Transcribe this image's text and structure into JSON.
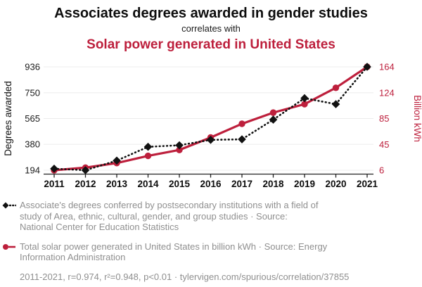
{
  "chart_data": {
    "type": "line",
    "title": "Associates degrees awarded in gender studies",
    "connector": "correlates with",
    "subtitle": "Solar power generated in United States",
    "x": [
      2011,
      2012,
      2013,
      2014,
      2015,
      2016,
      2017,
      2018,
      2019,
      2020,
      2021
    ],
    "series": [
      {
        "name": "Associate's degrees conferred in Area, ethnic, cultural, gender, and group studies",
        "axis": "left",
        "color": "#111111",
        "style": "dotted",
        "marker": "diamond",
        "values": [
          205,
          194,
          263,
          362,
          373,
          412,
          416,
          557,
          711,
          668,
          936
        ]
      },
      {
        "name": "Total solar power generated in United States",
        "axis": "right",
        "color": "#bd1f3c",
        "style": "solid",
        "marker": "circle",
        "values": [
          6,
          10,
          17,
          28,
          37,
          56,
          77,
          94,
          107,
          132,
          164
        ]
      }
    ],
    "left_axis": {
      "label": "Degrees awarded",
      "ticks": [
        936,
        750,
        565,
        380,
        194
      ],
      "min": 194,
      "max": 936
    },
    "right_axis": {
      "label": "Billion kWh",
      "ticks": [
        164,
        124,
        85,
        45,
        6
      ],
      "min": 6,
      "max": 164
    },
    "grid": true,
    "legend_position": "bottom",
    "legend": {
      "series1": {
        "marker": "black-diamond-dotted-line",
        "text": "Associate's degrees conferred by postsecondary institutions with a field of\nstudy of Area, ethnic, cultural, gender, and group studies · Source:\nNational Center for Education Statistics"
      },
      "series2": {
        "marker": "red-circle-solid-line",
        "text": "Total solar power generated in United States in billion kWh · Source: Energy\nInformation Administration"
      }
    },
    "footnote": "2011-2021, r=0.974, r²=0.948, p<0.01 · tylervigen.com/spurious/correlation/37855"
  },
  "colors": {
    "accent_red": "#bd1f3c",
    "series_black": "#111111",
    "legend_gray": "#8f8f8f",
    "gridline": "#ececec",
    "axis": "#222222"
  }
}
